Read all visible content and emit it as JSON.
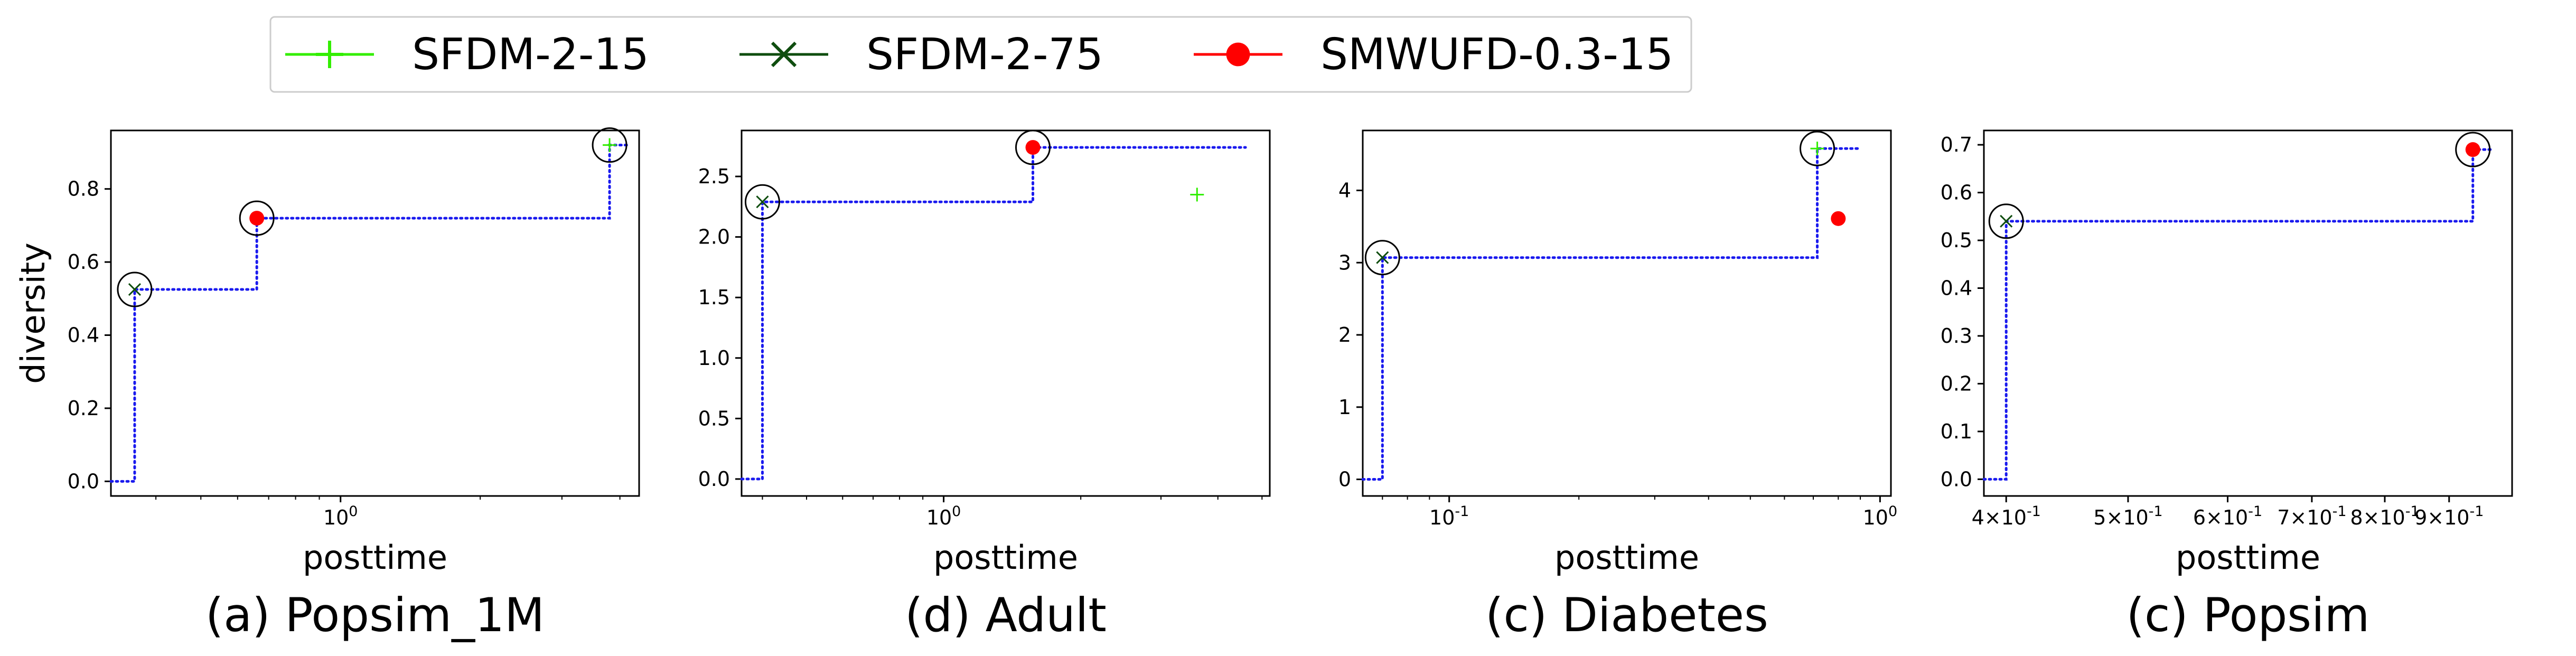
{
  "legend": {
    "items": [
      {
        "label": "SFDM-2-15",
        "color": "#33ee00",
        "marker": "plus"
      },
      {
        "label": "SFDM-2-75",
        "color": "#0f4d0f",
        "marker": "x"
      },
      {
        "label": "SMWUFD-0.3-15",
        "color": "#ff0000",
        "marker": "dot"
      }
    ]
  },
  "colors": {
    "frontier": "#1a1aee",
    "highlight_circle": "#000000"
  },
  "chart_data": [
    {
      "type": "scatter",
      "caption": "(a) Popsim_1M",
      "xlabel": "posttime",
      "ylabel": "diversity",
      "xscale": "log",
      "xlim": [
        0.32,
        4.4
      ],
      "ylim": [
        -0.04,
        0.96
      ],
      "xticks": [
        {
          "value": 1,
          "label": "10^0"
        }
      ],
      "yticks": [
        0.0,
        0.2,
        0.4,
        0.6,
        0.8
      ],
      "ytick_labels": [
        "0.0",
        "0.2",
        "0.4",
        "0.6",
        "0.8"
      ],
      "series": [
        {
          "name": "SFDM-2-15",
          "points": [
            [
              3.8,
              0.92
            ]
          ]
        },
        {
          "name": "SFDM-2-75",
          "points": [
            [
              0.36,
              0.525
            ]
          ]
        },
        {
          "name": "SMWUFD-0.3-15",
          "points": [
            [
              0.66,
              0.72
            ]
          ]
        }
      ],
      "frontier": [
        [
          0.32,
          0.0
        ],
        [
          0.36,
          0.0
        ],
        [
          0.36,
          0.525
        ],
        [
          0.66,
          0.525
        ],
        [
          0.66,
          0.72
        ],
        [
          3.8,
          0.72
        ],
        [
          3.8,
          0.92
        ],
        [
          4.2,
          0.92
        ]
      ],
      "circled": [
        [
          0.36,
          0.525
        ],
        [
          0.66,
          0.72
        ],
        [
          3.8,
          0.92
        ]
      ]
    },
    {
      "type": "scatter",
      "caption": "(d) Adult",
      "xlabel": "posttime",
      "ylabel": "",
      "xscale": "log",
      "xlim": [
        0.36,
        5.2
      ],
      "ylim": [
        -0.14,
        2.88
      ],
      "xticks": [
        {
          "value": 1,
          "label": "10^0"
        }
      ],
      "yticks": [
        0.0,
        0.5,
        1.0,
        1.5,
        2.0,
        2.5
      ],
      "ytick_labels": [
        "0.0",
        "0.5",
        "1.0",
        "1.5",
        "2.0",
        "2.5"
      ],
      "series": [
        {
          "name": "SFDM-2-15",
          "points": [
            [
              3.6,
              2.35
            ]
          ]
        },
        {
          "name": "SFDM-2-75",
          "points": [
            [
              0.4,
              2.29
            ]
          ]
        },
        {
          "name": "SMWUFD-0.3-15",
          "points": [
            [
              1.57,
              2.74
            ]
          ]
        }
      ],
      "frontier": [
        [
          0.36,
          0.0
        ],
        [
          0.4,
          0.0
        ],
        [
          0.4,
          2.29
        ],
        [
          1.57,
          2.29
        ],
        [
          1.57,
          2.74
        ],
        [
          4.6,
          2.74
        ]
      ],
      "circled": [
        [
          0.4,
          2.29
        ],
        [
          1.57,
          2.74
        ]
      ]
    },
    {
      "type": "scatter",
      "caption": "(c) Diabetes",
      "xlabel": "posttime",
      "ylabel": "",
      "xscale": "log",
      "xlim": [
        0.063,
        1.06
      ],
      "ylim": [
        -0.23,
        4.83
      ],
      "xticks": [
        {
          "value": 0.1,
          "label": "10^-1"
        },
        {
          "value": 1,
          "label": "10^0"
        }
      ],
      "yticks": [
        0,
        1,
        2,
        3,
        4
      ],
      "ytick_labels": [
        "0",
        "1",
        "2",
        "3",
        "4"
      ],
      "series": [
        {
          "name": "SFDM-2-15",
          "points": [
            [
              0.715,
              4.58
            ]
          ]
        },
        {
          "name": "SFDM-2-75",
          "points": [
            [
              0.07,
              3.07
            ]
          ]
        },
        {
          "name": "SMWUFD-0.3-15",
          "points": [
            [
              0.8,
              3.61
            ]
          ]
        }
      ],
      "frontier": [
        [
          0.063,
          0.0
        ],
        [
          0.07,
          0.0
        ],
        [
          0.07,
          3.07
        ],
        [
          0.715,
          3.07
        ],
        [
          0.715,
          4.58
        ],
        [
          0.9,
          4.58
        ]
      ],
      "circled": [
        [
          0.07,
          3.07
        ],
        [
          0.715,
          4.58
        ]
      ]
    },
    {
      "type": "scatter",
      "caption": "(c) Popsim",
      "xlabel": "posttime",
      "ylabel": "",
      "xscale": "log",
      "xlim": [
        0.384,
        1.01
      ],
      "ylim": [
        -0.035,
        0.73
      ],
      "xticks": [
        {
          "value": 0.4,
          "label": "4×10^-1"
        },
        {
          "value": 0.5,
          "label": "5×10^-1"
        },
        {
          "value": 0.6,
          "label": "6×10^-1"
        },
        {
          "value": 0.7,
          "label": "7×10^-1"
        },
        {
          "value": 0.8,
          "label": "8×10^-1"
        },
        {
          "value": 0.9,
          "label": "9×10^-1"
        }
      ],
      "yticks": [
        0.0,
        0.1,
        0.2,
        0.3,
        0.4,
        0.5,
        0.6,
        0.7
      ],
      "ytick_labels": [
        "0.0",
        "0.1",
        "0.2",
        "0.3",
        "0.4",
        "0.5",
        "0.6",
        "0.7"
      ],
      "series": [
        {
          "name": "SFDM-2-15",
          "points": [
            [
              0.94,
              0.69
            ]
          ]
        },
        {
          "name": "SFDM-2-75",
          "points": [
            [
              0.4,
              0.54
            ]
          ]
        },
        {
          "name": "SMWUFD-0.3-15",
          "points": [
            [
              0.94,
              0.69
            ]
          ]
        }
      ],
      "frontier": [
        [
          0.384,
          0.0
        ],
        [
          0.4,
          0.0
        ],
        [
          0.4,
          0.54
        ],
        [
          0.94,
          0.54
        ],
        [
          0.94,
          0.69
        ],
        [
          0.975,
          0.69
        ]
      ],
      "circled": [
        [
          0.4,
          0.54
        ],
        [
          0.94,
          0.69
        ]
      ]
    }
  ]
}
